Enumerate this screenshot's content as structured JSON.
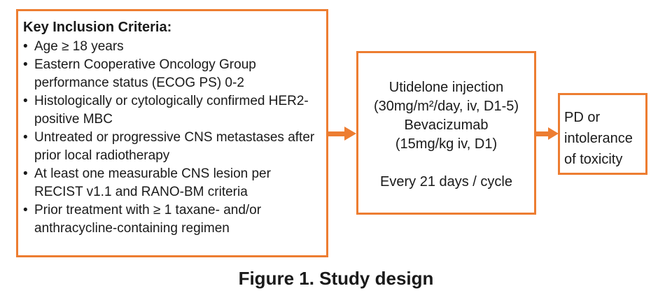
{
  "colors": {
    "accent_orange": "#ED7D31",
    "text": "#1a1a1a",
    "background": "#ffffff"
  },
  "caption": "Figure 1. Study design",
  "inclusion_box": {
    "title": "Key Inclusion Criteria:",
    "bullet_char": "•",
    "items": [
      "Age ≥ 18 years",
      "Eastern Cooperative Oncology Group performance status (ECOG PS) 0-2",
      "Histologically or cytologically confirmed HER2-positive MBC",
      "Untreated or progressive CNS metastases after prior local radiotherapy",
      "At least one measurable CNS lesion per RECIST v1.1 and RANO-BM criteria",
      "Prior treatment with ≥ 1 taxane- and/or anthracycline-containing regimen"
    ]
  },
  "treatment_box": {
    "regimen_lines": [
      "Utidelone injection",
      "(30mg/m²/day, iv, D1-5)",
      "Bevacizumab",
      "(15mg/kg iv, D1)"
    ],
    "schedule": "Every 21 days / cycle"
  },
  "outcome_box": {
    "lines": [
      "PD or",
      "intolerance",
      "of toxicity"
    ]
  }
}
